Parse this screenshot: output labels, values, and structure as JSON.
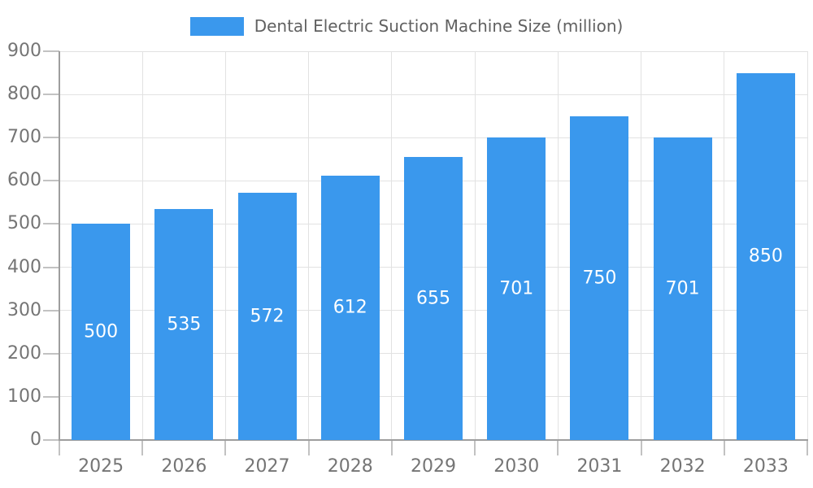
{
  "chart_data": {
    "type": "bar",
    "title": "Dental Electric Suction Machine Size (million)",
    "legend": [
      "Dental Electric Suction Machine Size (million)"
    ],
    "legend_position": "top-center",
    "categories": [
      "2025",
      "2026",
      "2027",
      "2028",
      "2029",
      "2030",
      "2031",
      "2032",
      "2033"
    ],
    "series": [
      {
        "name": "Dental Electric Suction Machine Size (million)",
        "values": [
          500,
          535,
          572,
          612,
          655,
          701,
          750,
          701,
          850
        ]
      }
    ],
    "xlabel": "",
    "ylabel": "",
    "ylim": [
      0,
      900
    ],
    "ytick_step": 100,
    "yticks": [
      0,
      100,
      200,
      300,
      400,
      500,
      600,
      700,
      800,
      900
    ],
    "grid": "horizontal and vertical light gray gridlines",
    "bar_value_labels": "white, centered inside bars",
    "colors": {
      "bar": "#3A98ED",
      "grid": "#E2E2E2",
      "axis_line": "#9E9E9E",
      "tick": "#C2C2C2",
      "axis_text": "#757575",
      "legend_text": "#616161",
      "bar_label_text": "#FFFFFF",
      "background": "#FFFFFF"
    }
  }
}
